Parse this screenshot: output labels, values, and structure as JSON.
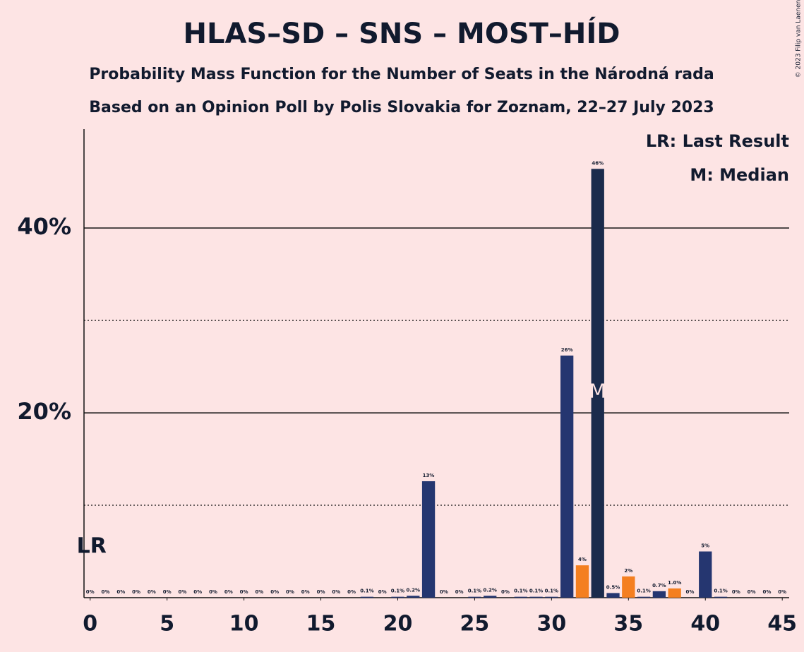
{
  "chart_data": {
    "type": "bar",
    "title": "HLAS–SD – SNS – MOST–HÍD",
    "subtitle": "Probability Mass Function for the Number of Seats in the Národná rada",
    "subtitle2": "Based on an Opinion Poll by Polis Slovakia for Zoznam, 22–27 July 2023",
    "copyright": "© 2023 Filip van Laenen",
    "legend": [
      "LR: Last Result",
      "M: Median"
    ],
    "legend_position": "top-right",
    "x": [
      0,
      1,
      2,
      3,
      4,
      5,
      6,
      7,
      8,
      9,
      10,
      11,
      12,
      13,
      14,
      15,
      16,
      17,
      18,
      19,
      20,
      21,
      22,
      23,
      24,
      25,
      26,
      27,
      28,
      29,
      30,
      31,
      32,
      33,
      34,
      35,
      36,
      37,
      38,
      39,
      40,
      41,
      42,
      43,
      44,
      45
    ],
    "values": [
      0,
      0,
      0,
      0,
      0,
      0,
      0,
      0,
      0,
      0,
      0,
      0,
      0,
      0,
      0,
      0,
      0,
      0,
      0.1,
      0,
      0.1,
      0.2,
      12.6,
      0,
      0,
      0.1,
      0.2,
      0,
      0.1,
      0.1,
      0.1,
      26.2,
      3.5,
      46.4,
      0.5,
      2.3,
      0.1,
      0.7,
      1.0,
      0,
      5.0,
      0.1,
      0,
      0,
      0,
      0
    ],
    "value_labels": [
      "0%",
      "0%",
      "0%",
      "0%",
      "0%",
      "0%",
      "0%",
      "0%",
      "0%",
      "0%",
      "0%",
      "0%",
      "0%",
      "0%",
      "0%",
      "0%",
      "0%",
      "0%",
      "0.1%",
      "0%",
      "0.1%",
      "0.2%",
      "13%",
      "0%",
      "0%",
      "0.1%",
      "0.2%",
      "0%",
      "0.1%",
      "0.1%",
      "0.1%",
      "26%",
      "4%",
      "46%",
      "0.5%",
      "2%",
      "0.1%",
      "0.7%",
      "1.0%",
      "0%",
      "5%",
      "0.1%",
      "0%",
      "0%",
      "0%",
      "0%"
    ],
    "colors": [
      "#253670",
      "#253670",
      "#253670",
      "#253670",
      "#253670",
      "#253670",
      "#253670",
      "#253670",
      "#253670",
      "#253670",
      "#253670",
      "#253670",
      "#253670",
      "#253670",
      "#253670",
      "#253670",
      "#253670",
      "#253670",
      "#253670",
      "#253670",
      "#253670",
      "#253670",
      "#253670",
      "#253670",
      "#253670",
      "#253670",
      "#253670",
      "#253670",
      "#253670",
      "#253670",
      "#253670",
      "#253670",
      "#f47f20",
      "#1b2b4c",
      "#253670",
      "#f47f20",
      "#253670",
      "#253670",
      "#f47f20",
      "#253670",
      "#253670",
      "#253670",
      "#253670",
      "#253670",
      "#253670",
      "#253670"
    ],
    "last_result": {
      "x": 0,
      "label": "LR"
    },
    "median": {
      "x": 33,
      "label": "M"
    },
    "xlim": [
      -0.4,
      45.45
    ],
    "xticks": [
      0,
      5,
      10,
      15,
      20,
      25,
      30,
      35,
      40,
      45
    ],
    "ylim": [
      0,
      50.7
    ],
    "yticks": [
      {
        "value": 20,
        "label": "20%"
      },
      {
        "value": 40,
        "label": "40%"
      }
    ],
    "minor_yticks": [
      10,
      30
    ],
    "grid": true
  }
}
